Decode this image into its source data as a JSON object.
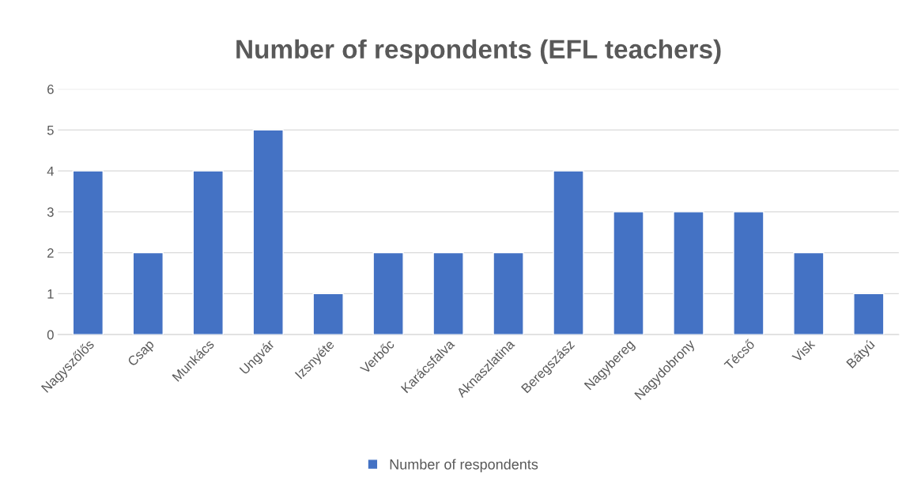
{
  "chart_data": {
    "type": "bar",
    "title": "Number of respondents (EFL teachers)",
    "categories": [
      "Nagyszőlős",
      "Csap",
      "Munkács",
      "Ungvár",
      "Izsnyéte",
      "Verbőc",
      "Karácsfalva",
      "Aknaszlatina",
      "Beregszász",
      "Nagybereg",
      "Nagydobrony",
      "Técső",
      "Visk",
      "Bátyú"
    ],
    "series": [
      {
        "name": "Number of respondents",
        "color": "#4472c4",
        "values": [
          4,
          2,
          4,
          5,
          1,
          2,
          2,
          2,
          4,
          3,
          3,
          3,
          2,
          1
        ]
      }
    ],
    "ylim": [
      0,
      6
    ],
    "yticks": [
      0,
      1,
      2,
      3,
      4,
      5,
      6
    ],
    "grid": "y",
    "legend": "bottom"
  }
}
